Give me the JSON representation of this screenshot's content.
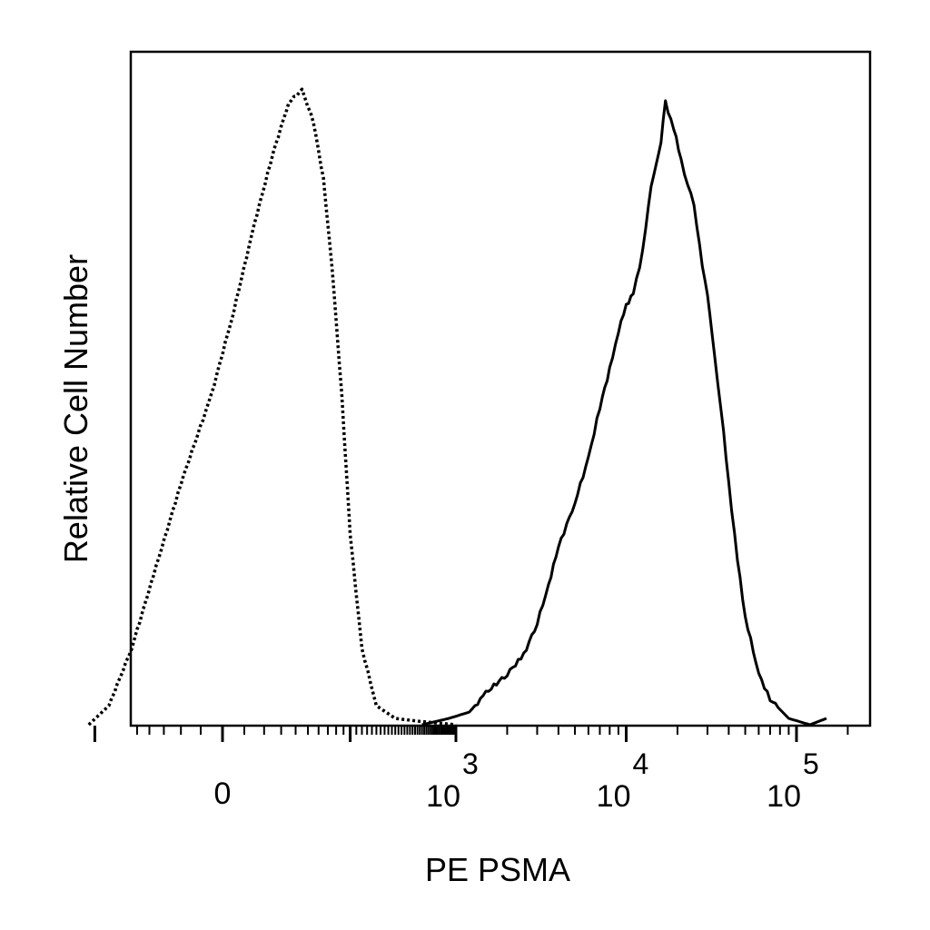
{
  "chart_data": {
    "type": "line",
    "title": "",
    "xlabel": "PE PSMA",
    "ylabel": "Relative Cell Number",
    "x_scale": "biexponential",
    "xlim": [
      -300,
      150000
    ],
    "ylim": [
      0,
      100
    ],
    "grid": false,
    "legend": "none",
    "x_ticks": [
      {
        "value": 0,
        "label": "0"
      },
      {
        "value": 1000,
        "base": "10",
        "exp": "3"
      },
      {
        "value": 10000,
        "base": "10",
        "exp": "4"
      },
      {
        "value": 100000,
        "base": "10",
        "exp": "5"
      }
    ],
    "series": [
      {
        "style": "dotted",
        "color": "#000000",
        "x": [
          -220,
          -160,
          -110,
          -70,
          -40,
          -10,
          10,
          30,
          50,
          70,
          90,
          110,
          130,
          150,
          175,
          200,
          240,
          300,
          400,
          600,
          1000
        ],
        "y": [
          0,
          3,
          12,
          25,
          38,
          52,
          65,
          79,
          90,
          98,
          100,
          95,
          86,
          72,
          52,
          30,
          12,
          3,
          1,
          0.5,
          0
        ]
      },
      {
        "style": "solid",
        "color": "#000000",
        "x": [
          600,
          900,
          1200,
          1500,
          2000,
          2500,
          3000,
          3500,
          4000,
          5000,
          6000,
          7000,
          8000,
          9000,
          10000,
          11000,
          12000,
          13000,
          14000,
          15000,
          16000,
          17000,
          19000,
          21000,
          23000,
          25000,
          28000,
          30000,
          33000,
          36000,
          40000,
          45000,
          50000,
          60000,
          70000,
          90000,
          120000,
          150000
        ],
        "y": [
          0,
          1,
          2,
          5,
          8,
          11,
          16,
          22,
          28,
          35,
          42,
          50,
          56,
          62,
          66,
          68,
          72,
          78,
          85,
          88,
          92,
          98,
          94,
          89,
          85,
          82,
          72,
          68,
          58,
          50,
          38,
          26,
          17,
          8,
          4,
          1,
          0,
          1
        ]
      }
    ]
  }
}
